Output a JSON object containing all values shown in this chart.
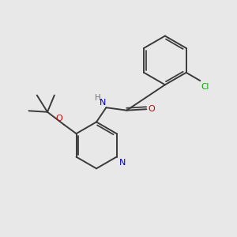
{
  "background_color": "#e8e8e8",
  "bond_color": "#3a3a3a",
  "atom_colors": {
    "N": "#0000cc",
    "O": "#cc0000",
    "Cl": "#00aa00",
    "H": "#707070",
    "C": "#3a3a3a"
  },
  "figsize": [
    3.0,
    3.0
  ],
  "dpi": 100
}
